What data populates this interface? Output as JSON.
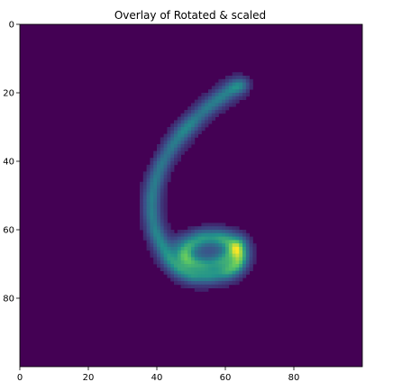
{
  "chart_data": {
    "type": "heatmap",
    "title": "Overlay of Rotated & scaled",
    "xlabel": "",
    "ylabel": "",
    "colormap": "viridis",
    "background_color": "#440154",
    "grid": false,
    "xlim": [
      0,
      100
    ],
    "ylim": [
      100,
      0
    ],
    "xticks": [
      0,
      20,
      40,
      60,
      80
    ],
    "yticks": [
      0,
      20,
      40,
      60,
      80
    ],
    "stroke_path_points": [
      [
        65,
        17
      ],
      [
        62,
        18
      ],
      [
        58,
        21
      ],
      [
        54,
        24
      ],
      [
        50,
        28
      ],
      [
        47,
        31
      ],
      [
        44,
        35
      ],
      [
        41,
        40
      ],
      [
        39,
        45
      ],
      [
        38,
        50
      ],
      [
        38,
        55
      ],
      [
        39,
        60
      ],
      [
        41,
        64
      ],
      [
        43,
        68
      ],
      [
        46,
        71
      ],
      [
        50,
        73
      ],
      [
        55,
        73
      ],
      [
        60,
        72
      ],
      [
        63,
        70
      ],
      [
        64,
        67
      ],
      [
        62,
        64
      ],
      [
        58,
        62
      ],
      [
        53,
        62
      ],
      [
        49,
        64
      ],
      [
        47,
        67
      ],
      [
        49,
        69
      ],
      [
        53,
        70
      ],
      [
        58,
        69
      ],
      [
        62,
        66
      ],
      [
        64,
        63
      ]
    ],
    "secondary_loop_points": [
      [
        44,
        66
      ],
      [
        47,
        63
      ],
      [
        52,
        61
      ],
      [
        57,
        61
      ],
      [
        61,
        62
      ],
      [
        64,
        65
      ],
      [
        63,
        69
      ],
      [
        59,
        71
      ]
    ]
  }
}
